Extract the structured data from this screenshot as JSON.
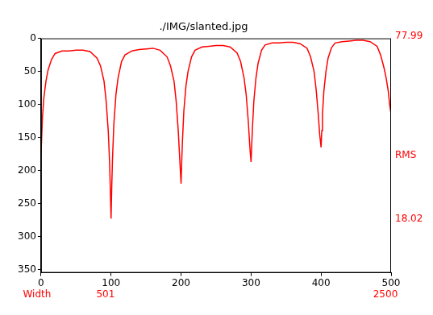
{
  "chart_data": {
    "type": "line",
    "title": "./IMG/slanted.jpg",
    "x": [
      0,
      2,
      4,
      7,
      10,
      15,
      20,
      30,
      40,
      50,
      60,
      70,
      80,
      85,
      90,
      93,
      96,
      98,
      99,
      100,
      101,
      102,
      104,
      107,
      110,
      115,
      120,
      130,
      140,
      150,
      160,
      170,
      180,
      185,
      190,
      193,
      196,
      198,
      199,
      200,
      201,
      202,
      204,
      207,
      210,
      215,
      220,
      230,
      240,
      250,
      260,
      270,
      280,
      285,
      290,
      293,
      296,
      298,
      299,
      300,
      301,
      302,
      304,
      307,
      310,
      315,
      320,
      330,
      340,
      350,
      360,
      370,
      380,
      385,
      390,
      393,
      396,
      398,
      399,
      400,
      401,
      402,
      404,
      407,
      410,
      415,
      420,
      430,
      440,
      450,
      460,
      470,
      480,
      485,
      490,
      493,
      496,
      498,
      500
    ],
    "values": [
      175,
      120,
      90,
      65,
      48,
      32,
      23,
      19,
      19,
      18,
      18,
      20,
      30,
      42,
      65,
      95,
      140,
      190,
      230,
      273,
      225,
      185,
      130,
      85,
      60,
      35,
      25,
      19,
      17,
      16,
      15,
      18,
      28,
      42,
      65,
      95,
      140,
      180,
      200,
      220,
      185,
      155,
      110,
      72,
      50,
      28,
      18,
      13,
      12,
      11,
      11,
      13,
      22,
      35,
      60,
      85,
      125,
      160,
      175,
      187,
      160,
      135,
      95,
      60,
      38,
      18,
      10,
      7,
      7,
      6,
      6,
      8,
      15,
      28,
      50,
      78,
      115,
      145,
      155,
      165,
      140,
      115,
      80,
      50,
      30,
      14,
      7,
      5,
      4,
      3,
      3,
      5,
      12,
      25,
      45,
      60,
      80,
      100,
      115
    ],
    "color": "#ff0000",
    "xlim": [
      0,
      500
    ],
    "xticks": [
      0,
      100,
      200,
      300,
      400,
      500
    ],
    "ylim": [
      355,
      0
    ],
    "yticks": [
      0,
      50,
      100,
      150,
      200,
      250,
      300,
      350
    ],
    "grid": false,
    "right_labels": [
      "77.99",
      "RMS",
      "18.02"
    ],
    "bottom_labels": [
      "Width",
      "501",
      "2500"
    ]
  }
}
